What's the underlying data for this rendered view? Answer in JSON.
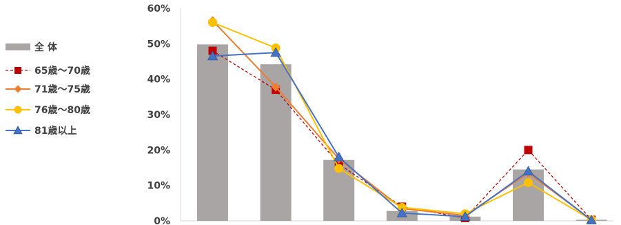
{
  "chart_data": {
    "type": "bar",
    "categories": [
      "",
      "",
      "",
      "",
      "",
      "",
      ""
    ],
    "ylim": [
      0,
      60
    ],
    "yticks": [
      "0%",
      "10%",
      "20%",
      "30%",
      "40%",
      "50%",
      "60%"
    ],
    "grid": false,
    "legend_position": "left",
    "colors": {
      "bar": "#aaa5a5",
      "65-70": "#c00000",
      "71-75": "#ed7d31",
      "76-80": "#ffc000",
      "81+": "#4472c4"
    },
    "bar_series": {
      "name": "全 体",
      "values": [
        49.8,
        44.2,
        17.2,
        2.8,
        1.2,
        14.5,
        0.3
      ]
    },
    "series": [
      {
        "name": "65歳〜70歳",
        "key": "65-70",
        "marker": "square",
        "dashed": true,
        "values": [
          48.0,
          37.0,
          16.0,
          4.0,
          0.8,
          20.0,
          0.3
        ]
      },
      {
        "name": "71歳〜75歳",
        "key": "71-75",
        "marker": "diamond",
        "dashed": false,
        "values": [
          56.5,
          37.8,
          17.5,
          3.5,
          1.5,
          13.5,
          0.3
        ]
      },
      {
        "name": "76歳〜80歳",
        "key": "76-80",
        "marker": "circle",
        "dashed": false,
        "values": [
          56.0,
          48.8,
          14.8,
          3.8,
          2.0,
          10.8,
          0.3
        ]
      },
      {
        "name": "81歳以上",
        "key": "81+",
        "marker": "triangle",
        "dashed": false,
        "values": [
          46.5,
          47.5,
          18.0,
          2.2,
          1.2,
          14.0,
          0.2
        ]
      }
    ]
  }
}
